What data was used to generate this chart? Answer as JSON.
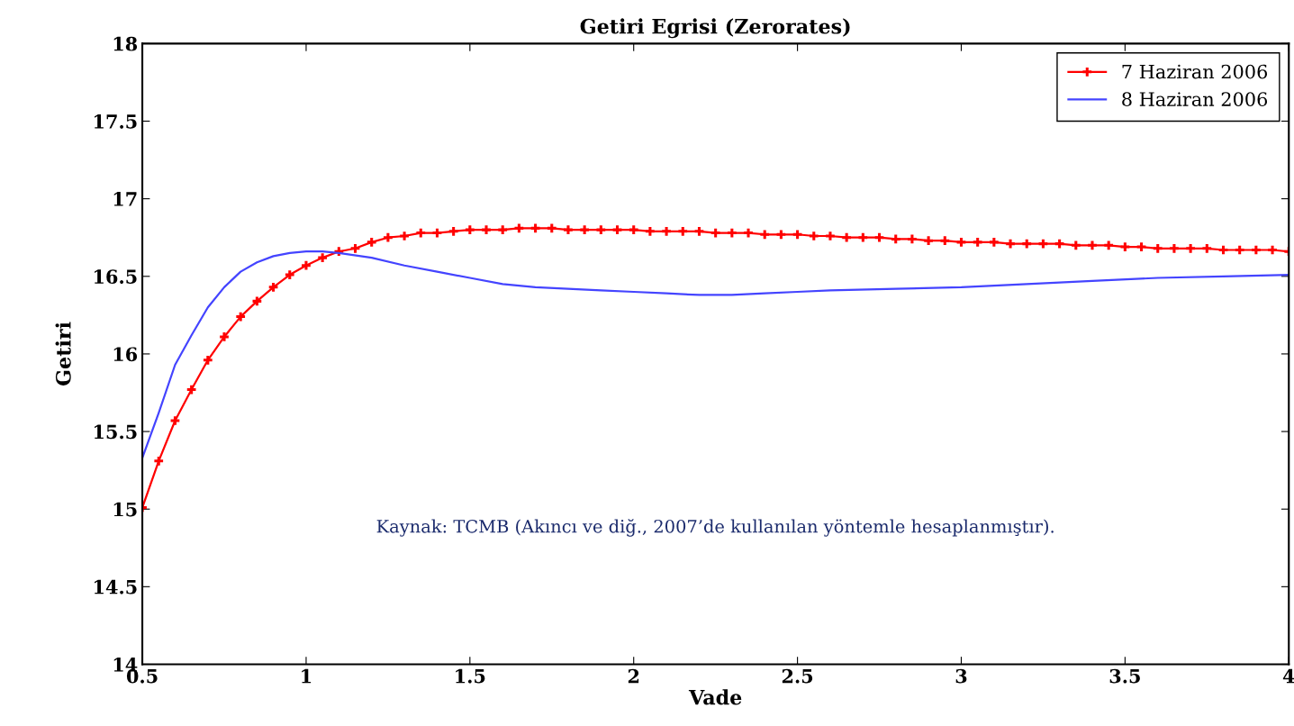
{
  "chart_data": {
    "type": "line",
    "title": "Getiri Egrisi (Zerorates)",
    "xlabel": "Vade",
    "ylabel": "Getiri",
    "xlim": [
      0.5,
      4
    ],
    "xticks": [
      0.5,
      1,
      1.5,
      2,
      2.5,
      3,
      3.5,
      4
    ],
    "ylim": [
      14,
      18
    ],
    "yticks": [
      14,
      14.5,
      15,
      15.5,
      16,
      16.5,
      17,
      17.5,
      18
    ],
    "grid": false,
    "legend": "top right",
    "annotations": [
      "Kaynak: TCMB (Akıncı ve diğ., 2007’de kullanılan yöntemle hesaplanmıştır)."
    ],
    "series": [
      {
        "name": "7 Haziran 2006",
        "color": "#ff0000",
        "marker": "cross",
        "x": [
          0.5,
          0.55,
          0.6,
          0.65,
          0.7,
          0.75,
          0.8,
          0.85,
          0.9,
          0.95,
          1.0,
          1.05,
          1.1,
          1.15,
          1.2,
          1.25,
          1.3,
          1.35,
          1.4,
          1.45,
          1.5,
          1.55,
          1.6,
          1.65,
          1.7,
          1.75,
          1.8,
          1.85,
          1.9,
          1.95,
          2.0,
          2.05,
          2.1,
          2.15,
          2.2,
          2.25,
          2.3,
          2.35,
          2.4,
          2.45,
          2.5,
          2.55,
          2.6,
          2.65,
          2.7,
          2.75,
          2.8,
          2.85,
          2.9,
          2.95,
          3.0,
          3.05,
          3.1,
          3.15,
          3.2,
          3.25,
          3.3,
          3.35,
          3.4,
          3.45,
          3.5,
          3.55,
          3.6,
          3.65,
          3.7,
          3.75,
          3.8,
          3.85,
          3.9,
          3.95,
          4.0
        ],
        "values": [
          15.01,
          15.31,
          15.57,
          15.77,
          15.96,
          16.11,
          16.24,
          16.34,
          16.43,
          16.51,
          16.57,
          16.62,
          16.66,
          16.68,
          16.72,
          16.75,
          16.76,
          16.78,
          16.78,
          16.79,
          16.8,
          16.8,
          16.8,
          16.81,
          16.81,
          16.81,
          16.8,
          16.8,
          16.8,
          16.8,
          16.8,
          16.79,
          16.79,
          16.79,
          16.79,
          16.78,
          16.78,
          16.78,
          16.77,
          16.77,
          16.77,
          16.76,
          16.76,
          16.75,
          16.75,
          16.75,
          16.74,
          16.74,
          16.73,
          16.73,
          16.72,
          16.72,
          16.72,
          16.71,
          16.71,
          16.71,
          16.71,
          16.7,
          16.7,
          16.7,
          16.69,
          16.69,
          16.68,
          16.68,
          16.68,
          16.68,
          16.67,
          16.67,
          16.67,
          16.67,
          16.66
        ]
      },
      {
        "name": "8 Haziran 2006",
        "color": "#4444ff",
        "marker": "none",
        "x": [
          0.5,
          0.55,
          0.6,
          0.65,
          0.7,
          0.75,
          0.8,
          0.85,
          0.9,
          0.95,
          1.0,
          1.05,
          1.1,
          1.2,
          1.3,
          1.4,
          1.5,
          1.6,
          1.7,
          1.8,
          1.9,
          2.0,
          2.1,
          2.2,
          2.3,
          2.4,
          2.5,
          2.6,
          2.8,
          3.0,
          3.2,
          3.4,
          3.6,
          3.8,
          4.0
        ],
        "values": [
          15.33,
          15.62,
          15.93,
          16.12,
          16.3,
          16.43,
          16.53,
          16.59,
          16.63,
          16.65,
          16.66,
          16.66,
          16.65,
          16.62,
          16.57,
          16.53,
          16.49,
          16.45,
          16.43,
          16.42,
          16.41,
          16.4,
          16.39,
          16.38,
          16.38,
          16.39,
          16.4,
          16.41,
          16.42,
          16.43,
          16.45,
          16.47,
          16.49,
          16.5,
          16.51
        ]
      }
    ]
  }
}
